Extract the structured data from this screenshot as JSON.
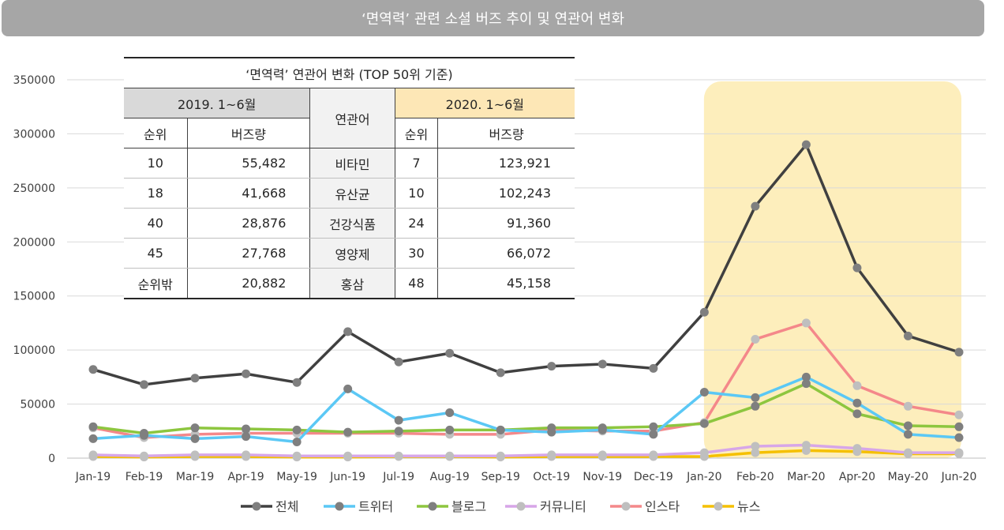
{
  "title": "‘면역력’ 관련 소셜 버즈 추이 및 연관어 변화",
  "table": {
    "caption": "‘면역력’ 연관어 변화 (TOP 50위 기준)",
    "period_2019": "2019. 1~6월",
    "period_2020": "2020. 1~6월",
    "keyword_header": "연관어",
    "rank_header": "순위",
    "buzz_header": "버즈량",
    "rows": [
      {
        "rank2019": "10",
        "buzz2019": "55,482",
        "keyword": "비타민",
        "rank2020": "7",
        "buzz2020": "123,921"
      },
      {
        "rank2019": "18",
        "buzz2019": "41,668",
        "keyword": "유산균",
        "rank2020": "10",
        "buzz2020": "102,243"
      },
      {
        "rank2019": "40",
        "buzz2019": "28,876",
        "keyword": "건강식품",
        "rank2020": "24",
        "buzz2020": "91,360"
      },
      {
        "rank2019": "45",
        "buzz2019": "27,768",
        "keyword": "영양제",
        "rank2020": "30",
        "buzz2020": "66,072"
      },
      {
        "rank2019": "순위밖",
        "buzz2019": "20,882",
        "keyword": "홍삼",
        "rank2020": "48",
        "buzz2020": "45,158"
      }
    ]
  },
  "highlight_color": "#fdeebc",
  "chart_data": {
    "type": "line",
    "categories": [
      "Jan-19",
      "Feb-19",
      "Mar-19",
      "Apr-19",
      "May-19",
      "Jun-19",
      "Jul-19",
      "Aug-19",
      "Sep-19",
      "Oct-19",
      "Nov-19",
      "Dec-19",
      "Jan-20",
      "Feb-20",
      "Mar-20",
      "Apr-20",
      "May-20",
      "Jun-20"
    ],
    "ylim": [
      0,
      350000
    ],
    "yticks": [
      0,
      50000,
      100000,
      150000,
      200000,
      250000,
      300000,
      350000
    ],
    "ytick_labels": [
      "0",
      "50000",
      "100000",
      "150000",
      "200000",
      "250000",
      "300000",
      "350000"
    ],
    "grid": true,
    "legend_position": "bottom",
    "highlight_range": [
      "Feb-20",
      "Jun-20"
    ],
    "series": [
      {
        "name": "전체",
        "color": "#404040",
        "marker": "#7f7f7f",
        "values": [
          82000,
          68000,
          74000,
          78000,
          70000,
          117000,
          89000,
          97000,
          79000,
          85000,
          87000,
          83000,
          135000,
          233000,
          290000,
          176000,
          113000,
          98000
        ]
      },
      {
        "name": "트위터",
        "color": "#5bc8f5",
        "marker": "#7f7f7f",
        "values": [
          18000,
          21000,
          18000,
          20000,
          15000,
          64000,
          35000,
          42000,
          26000,
          24000,
          26000,
          22000,
          61000,
          56000,
          75000,
          51000,
          22000,
          19000
        ]
      },
      {
        "name": "블로그",
        "color": "#8dc63f",
        "marker": "#7f7f7f",
        "values": [
          29000,
          23000,
          28000,
          27000,
          26000,
          24000,
          25000,
          26000,
          26000,
          28000,
          28000,
          29000,
          32000,
          48000,
          69000,
          41000,
          30000,
          29000
        ]
      },
      {
        "name": "커뮤니티",
        "color": "#d7a6e8",
        "marker": "#bfbfbf",
        "values": [
          3000,
          2000,
          3000,
          3000,
          2000,
          2000,
          2000,
          2000,
          2000,
          3000,
          3000,
          3000,
          5000,
          11000,
          12000,
          9000,
          5000,
          5000
        ]
      },
      {
        "name": "인스타",
        "color": "#f4888a",
        "marker": "#bfbfbf",
        "values": [
          28000,
          19000,
          22000,
          23000,
          23000,
          23000,
          23000,
          22000,
          22000,
          26000,
          25000,
          25000,
          33000,
          110000,
          125000,
          67000,
          48000,
          40000
        ]
      },
      {
        "name": "뉴스",
        "color": "#f5c000",
        "marker": "#bfbfbf",
        "values": [
          1500,
          1000,
          1500,
          1500,
          1000,
          1000,
          1500,
          1500,
          1000,
          1500,
          1500,
          1500,
          1500,
          5000,
          7000,
          6000,
          4000,
          4000
        ]
      }
    ]
  }
}
